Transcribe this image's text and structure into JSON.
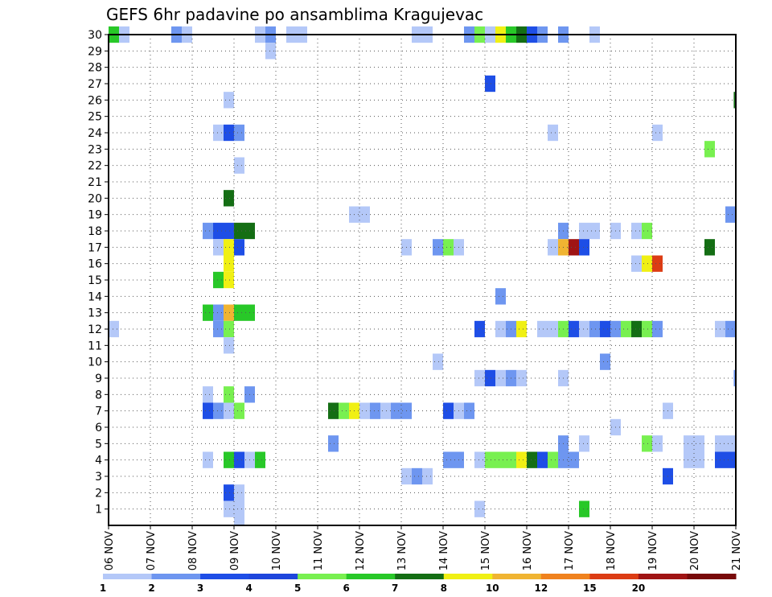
{
  "chart_data": {
    "type": "heatmap",
    "title": "GEFS 6hr padavine po ansamblima Kragujevac",
    "xlabel": "",
    "ylabel": "",
    "x_tick_labels": [
      "06 NOV",
      "07 NOV",
      "08 NOV",
      "09 NOV",
      "10 NOV",
      "11 NOV",
      "12 NOV",
      "13 NOV",
      "14 NOV",
      "15 NOV",
      "16 NOV",
      "17 NOV",
      "18 NOV",
      "19 NOV",
      "20 NOV",
      "21 NOV"
    ],
    "x_range_days": [
      0,
      15
    ],
    "y_tick_labels": [
      "1",
      "2",
      "3",
      "4",
      "5",
      "6",
      "7",
      "8",
      "9",
      "10",
      "11",
      "12",
      "13",
      "14",
      "15",
      "16",
      "17",
      "18",
      "19",
      "20",
      "21",
      "22",
      "23",
      "24",
      "25",
      "26",
      "27",
      "28",
      "29",
      "30"
    ],
    "y_range": [
      0,
      30
    ],
    "grid": true,
    "legend_position": "bottom",
    "colorbar": {
      "tick_labels": [
        "1",
        "2",
        "3",
        "4",
        "5",
        "6",
        "7",
        "8",
        "10",
        "12",
        "15",
        "20"
      ],
      "colors": [
        "#b4c8f8",
        "#6e96f0",
        "#1e4ee6",
        "#1e46dc",
        "#78f050",
        "#28c828",
        "#146e14",
        "#f0f014",
        "#f0b432",
        "#f0821e",
        "#dc3c14",
        "#a01414",
        "#780a0a"
      ]
    },
    "cells_note": "cells: [member, start_day_offset_from_06NOV, color_index] each 6h wide",
    "cells": [
      [
        30,
        0.0,
        5
      ],
      [
        30,
        0.25,
        0
      ],
      [
        30,
        1.75,
        0
      ],
      [
        30,
        1.5,
        1
      ],
      [
        30,
        3.5,
        0
      ],
      [
        30,
        3.75,
        1
      ],
      [
        30,
        4.25,
        0
      ],
      [
        30,
        4.5,
        0
      ],
      [
        30,
        7.25,
        0
      ],
      [
        30,
        7.5,
        0
      ],
      [
        30,
        8.5,
        1
      ],
      [
        30,
        8.75,
        4
      ],
      [
        30,
        9.0,
        0
      ],
      [
        30,
        9.25,
        7
      ],
      [
        30,
        9.5,
        5
      ],
      [
        30,
        9.75,
        6
      ],
      [
        30,
        10.0,
        2
      ],
      [
        30,
        10.25,
        1
      ],
      [
        30,
        10.75,
        1
      ],
      [
        30,
        11.5,
        0
      ],
      [
        29,
        3.75,
        0
      ],
      [
        27,
        9.0,
        2
      ],
      [
        26,
        2.75,
        0
      ],
      [
        26,
        14.95,
        6
      ],
      [
        24,
        2.5,
        0
      ],
      [
        24,
        2.75,
        2
      ],
      [
        24,
        3.0,
        1
      ],
      [
        24,
        10.5,
        0
      ],
      [
        24,
        13.0,
        0
      ],
      [
        23,
        14.25,
        4
      ],
      [
        22,
        3.0,
        0
      ],
      [
        20,
        2.75,
        6
      ],
      [
        19,
        5.75,
        0
      ],
      [
        19,
        6.0,
        0
      ],
      [
        19,
        14.75,
        1
      ],
      [
        18,
        2.25,
        1
      ],
      [
        18,
        2.5,
        2
      ],
      [
        18,
        2.75,
        2
      ],
      [
        18,
        3.0,
        6
      ],
      [
        18,
        3.25,
        6
      ],
      [
        18,
        10.75,
        1
      ],
      [
        18,
        11.25,
        0
      ],
      [
        18,
        11.5,
        0
      ],
      [
        18,
        12.0,
        0
      ],
      [
        18,
        12.5,
        0
      ],
      [
        18,
        12.75,
        4
      ],
      [
        17,
        2.5,
        0
      ],
      [
        17,
        2.75,
        7
      ],
      [
        17,
        3.0,
        2
      ],
      [
        17,
        7.0,
        0
      ],
      [
        17,
        7.75,
        1
      ],
      [
        17,
        8.0,
        4
      ],
      [
        17,
        8.25,
        0
      ],
      [
        17,
        10.5,
        0
      ],
      [
        17,
        10.75,
        8
      ],
      [
        17,
        11.0,
        11
      ],
      [
        17,
        11.25,
        2
      ],
      [
        17,
        14.25,
        6
      ],
      [
        16,
        2.75,
        7
      ],
      [
        16,
        12.5,
        0
      ],
      [
        16,
        12.75,
        7
      ],
      [
        16,
        13.0,
        10
      ],
      [
        15,
        2.5,
        5
      ],
      [
        15,
        2.75,
        7
      ],
      [
        14,
        9.25,
        1
      ],
      [
        13,
        2.25,
        5
      ],
      [
        13,
        2.5,
        1
      ],
      [
        13,
        2.75,
        8
      ],
      [
        13,
        3.0,
        5
      ],
      [
        13,
        3.25,
        5
      ],
      [
        12,
        0.0,
        0
      ],
      [
        12,
        2.5,
        1
      ],
      [
        12,
        2.75,
        4
      ],
      [
        12,
        8.75,
        2
      ],
      [
        12,
        9.25,
        0
      ],
      [
        12,
        9.5,
        1
      ],
      [
        12,
        9.75,
        7
      ],
      [
        12,
        10.25,
        0
      ],
      [
        12,
        10.5,
        0
      ],
      [
        12,
        10.75,
        4
      ],
      [
        12,
        11.0,
        2
      ],
      [
        12,
        11.25,
        0
      ],
      [
        12,
        11.5,
        1
      ],
      [
        12,
        11.75,
        2
      ],
      [
        12,
        12.0,
        1
      ],
      [
        12,
        12.25,
        4
      ],
      [
        12,
        12.5,
        6
      ],
      [
        12,
        12.75,
        4
      ],
      [
        12,
        13.0,
        1
      ],
      [
        12,
        14.5,
        0
      ],
      [
        12,
        14.75,
        1
      ],
      [
        11,
        2.75,
        0
      ],
      [
        10,
        7.75,
        0
      ],
      [
        10,
        11.75,
        1
      ],
      [
        9,
        8.75,
        0
      ],
      [
        9,
        9.0,
        2
      ],
      [
        9,
        9.25,
        0
      ],
      [
        9,
        9.5,
        1
      ],
      [
        9,
        9.75,
        0
      ],
      [
        9,
        10.75,
        0
      ],
      [
        9,
        14.95,
        1
      ],
      [
        8,
        2.25,
        0
      ],
      [
        8,
        2.75,
        4
      ],
      [
        8,
        3.25,
        1
      ],
      [
        7,
        2.25,
        2
      ],
      [
        7,
        2.5,
        1
      ],
      [
        7,
        2.75,
        0
      ],
      [
        7,
        3.0,
        4
      ],
      [
        7,
        5.25,
        6
      ],
      [
        7,
        5.5,
        4
      ],
      [
        7,
        5.75,
        7
      ],
      [
        7,
        6.0,
        0
      ],
      [
        7,
        6.25,
        1
      ],
      [
        7,
        6.5,
        0
      ],
      [
        7,
        6.75,
        1
      ],
      [
        7,
        7.0,
        1
      ],
      [
        7,
        8.0,
        2
      ],
      [
        7,
        8.25,
        0
      ],
      [
        7,
        8.5,
        1
      ],
      [
        7,
        13.25,
        0
      ],
      [
        6,
        12.0,
        0
      ],
      [
        5,
        5.25,
        1
      ],
      [
        5,
        10.75,
        1
      ],
      [
        5,
        11.25,
        0
      ],
      [
        5,
        12.75,
        4
      ],
      [
        5,
        13.0,
        0
      ],
      [
        5,
        13.75,
        0
      ],
      [
        5,
        14.0,
        0
      ],
      [
        5,
        14.5,
        0
      ],
      [
        5,
        14.75,
        0
      ],
      [
        4,
        2.25,
        0
      ],
      [
        4,
        2.75,
        5
      ],
      [
        4,
        3.0,
        2
      ],
      [
        4,
        3.25,
        0
      ],
      [
        4,
        3.5,
        5
      ],
      [
        4,
        8.0,
        1
      ],
      [
        4,
        8.25,
        1
      ],
      [
        4,
        8.75,
        0
      ],
      [
        4,
        9.0,
        4
      ],
      [
        4,
        9.25,
        4
      ],
      [
        4,
        9.5,
        4
      ],
      [
        4,
        9.75,
        7
      ],
      [
        4,
        10.0,
        6
      ],
      [
        4,
        10.25,
        2
      ],
      [
        4,
        10.5,
        4
      ],
      [
        4,
        10.75,
        1
      ],
      [
        4,
        11.0,
        1
      ],
      [
        4,
        13.75,
        0
      ],
      [
        4,
        14.0,
        0
      ],
      [
        4,
        14.5,
        2
      ],
      [
        4,
        14.75,
        2
      ],
      [
        3,
        7.0,
        0
      ],
      [
        3,
        7.25,
        1
      ],
      [
        3,
        7.5,
        0
      ],
      [
        3,
        13.25,
        2
      ],
      [
        2,
        2.75,
        2
      ],
      [
        2,
        3.0,
        0
      ],
      [
        1,
        2.75,
        0
      ],
      [
        1,
        3.0,
        0
      ],
      [
        1,
        8.75,
        0
      ],
      [
        1,
        11.25,
        5
      ],
      [
        0.5,
        3.0,
        0
      ]
    ]
  }
}
